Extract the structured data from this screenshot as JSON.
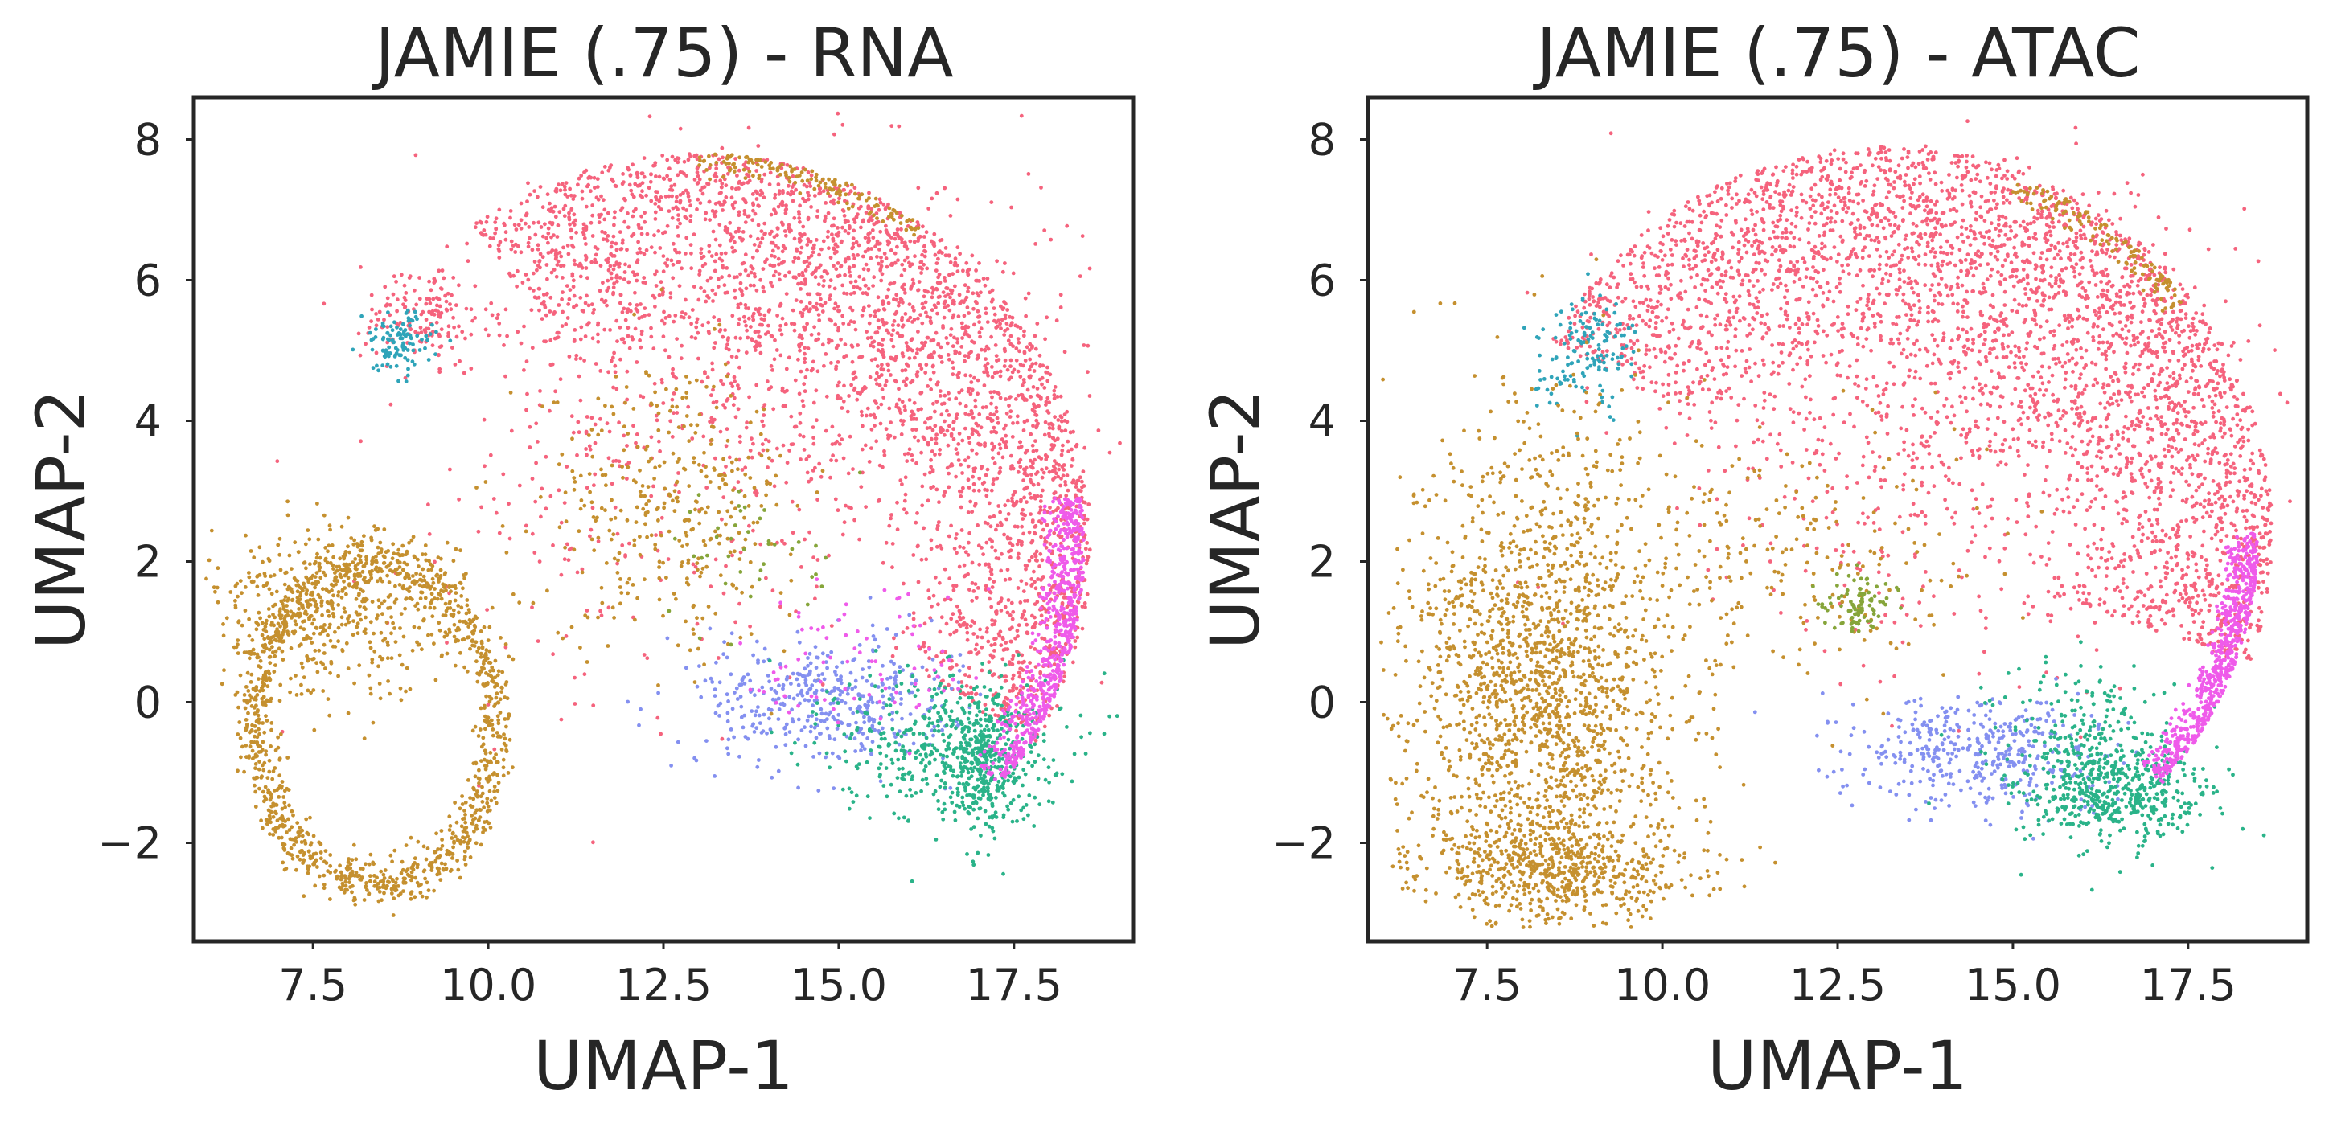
{
  "chart_data": [
    {
      "type": "scatter",
      "title": "JAMIE (.75) - RNA",
      "xlabel": "UMAP-1",
      "ylabel": "UMAP-2",
      "xlim": [
        5.8,
        19.2
      ],
      "ylim": [
        -3.4,
        8.6
      ],
      "xticks": [
        7.5,
        10.0,
        12.5,
        15.0,
        17.5
      ],
      "xtick_labels": [
        "7.5",
        "10.0",
        "12.5",
        "15.0",
        "17.5"
      ],
      "yticks": [
        -2,
        0,
        2,
        4,
        6,
        8
      ],
      "ytick_labels": [
        "−2",
        "0",
        "2",
        "4",
        "6",
        "8"
      ],
      "grid": false,
      "legend": "none",
      "clusters": [
        {
          "color": "#f5637d",
          "shape": "arc",
          "cx": 13.0,
          "cy": 2.2,
          "r_min": 2.8,
          "r_max": 5.6,
          "theta": [
            -30,
            125
          ],
          "n": 2600
        },
        {
          "color": "#f5637d",
          "shape": "blob",
          "cx": 14.6,
          "cy": 4.6,
          "sx": 2.0,
          "sy": 1.5,
          "n": 900
        },
        {
          "color": "#f5637d",
          "shape": "blob",
          "cx": 9.1,
          "cy": 5.5,
          "sx": 0.45,
          "sy": 0.35,
          "n": 160
        },
        {
          "color": "#f5637d",
          "shape": "blob",
          "cx": 11.0,
          "cy": 3.0,
          "sx": 1.3,
          "sy": 2.0,
          "n": 120
        },
        {
          "color": "#2fa4b9",
          "shape": "blob",
          "cx": 8.7,
          "cy": 5.1,
          "sx": 0.25,
          "sy": 0.22,
          "n": 110
        },
        {
          "color": "#c5902f",
          "shape": "ring",
          "cx": 8.4,
          "cy": -0.3,
          "rx": 1.7,
          "ry": 2.3,
          "width": 0.35,
          "n": 1200
        },
        {
          "color": "#c5902f",
          "shape": "blob",
          "cx": 7.7,
          "cy": 1.2,
          "sx": 0.9,
          "sy": 0.6,
          "n": 500
        },
        {
          "color": "#c5902f",
          "shape": "blob",
          "cx": 12.6,
          "cy": 2.8,
          "sx": 0.9,
          "sy": 1.0,
          "n": 350
        },
        {
          "color": "#c5902f",
          "shape": "arc",
          "cx": 13.0,
          "cy": 2.2,
          "r_min": 5.2,
          "r_max": 5.6,
          "theta": [
            55,
            90
          ],
          "n": 140
        },
        {
          "color": "#8490f0",
          "shape": "blob",
          "cx": 14.8,
          "cy": 0.0,
          "sx": 0.9,
          "sy": 0.45,
          "n": 420
        },
        {
          "color": "#2ab389",
          "shape": "blob",
          "cx": 16.6,
          "cy": -0.6,
          "sx": 0.8,
          "sy": 0.55,
          "n": 480
        },
        {
          "color": "#2ab389",
          "shape": "blob",
          "cx": 17.1,
          "cy": -0.9,
          "sx": 0.25,
          "sy": 0.45,
          "n": 260
        },
        {
          "color": "#ef5bea",
          "shape": "arc",
          "cx": 13.0,
          "cy": 2.2,
          "r_min": 4.9,
          "r_max": 5.5,
          "theta": [
            -38,
            8
          ],
          "n": 650
        },
        {
          "color": "#ef5bea",
          "shape": "blob",
          "cx": 15.5,
          "cy": 0.6,
          "sx": 0.9,
          "sy": 0.6,
          "n": 80
        },
        {
          "color": "#86a53a",
          "shape": "blob",
          "cx": 13.9,
          "cy": 2.2,
          "sx": 0.6,
          "sy": 0.5,
          "n": 40
        }
      ]
    },
    {
      "type": "scatter",
      "title": "JAMIE (.75) - ATAC",
      "xlabel": "UMAP-1",
      "ylabel": "UMAP-2",
      "xlim": [
        5.8,
        19.2
      ],
      "ylim": [
        -3.4,
        8.6
      ],
      "xticks": [
        7.5,
        10.0,
        12.5,
        15.0,
        17.5
      ],
      "xtick_labels": [
        "7.5",
        "10.0",
        "12.5",
        "15.0",
        "17.5"
      ],
      "yticks": [
        -2,
        0,
        2,
        4,
        6,
        8
      ],
      "ytick_labels": [
        "−2",
        "0",
        "2",
        "4",
        "6",
        "8"
      ],
      "grid": false,
      "legend": "none",
      "clusters": [
        {
          "color": "#f5637d",
          "shape": "arc",
          "cx": 13.2,
          "cy": 2.4,
          "r_min": 2.4,
          "r_max": 5.5,
          "theta": [
            -20,
            150
          ],
          "n": 3000
        },
        {
          "color": "#f5637d",
          "shape": "blob",
          "cx": 14.4,
          "cy": 4.2,
          "sx": 2.0,
          "sy": 1.6,
          "n": 1000
        },
        {
          "color": "#2fa4b9",
          "shape": "blob",
          "cx": 8.9,
          "cy": 5.0,
          "sx": 0.35,
          "sy": 0.4,
          "n": 140
        },
        {
          "color": "#c5902f",
          "shape": "blob",
          "cx": 8.3,
          "cy": 0.1,
          "sx": 0.95,
          "sy": 1.9,
          "n": 2000
        },
        {
          "color": "#c5902f",
          "shape": "blob",
          "cx": 8.6,
          "cy": -2.4,
          "sx": 1.0,
          "sy": 0.3,
          "n": 450
        },
        {
          "color": "#c5902f",
          "shape": "blob",
          "cx": 11.8,
          "cy": 2.0,
          "sx": 1.3,
          "sy": 0.9,
          "n": 220
        },
        {
          "color": "#c5902f",
          "shape": "arc",
          "cx": 13.2,
          "cy": 2.4,
          "r_min": 5.0,
          "r_max": 5.4,
          "theta": [
            38,
            70
          ],
          "n": 130
        },
        {
          "color": "#86a53a",
          "shape": "blob",
          "cx": 12.8,
          "cy": 1.4,
          "sx": 0.25,
          "sy": 0.2,
          "n": 90
        },
        {
          "color": "#8490f0",
          "shape": "blob",
          "cx": 14.6,
          "cy": -0.7,
          "sx": 0.9,
          "sy": 0.4,
          "n": 420
        },
        {
          "color": "#2ab389",
          "shape": "blob",
          "cx": 16.4,
          "cy": -1.3,
          "sx": 0.7,
          "sy": 0.4,
          "n": 520
        },
        {
          "color": "#2ab389",
          "shape": "blob",
          "cx": 16.0,
          "cy": -0.4,
          "sx": 0.6,
          "sy": 0.5,
          "n": 160
        },
        {
          "color": "#ef5bea",
          "shape": "arc",
          "cx": 13.2,
          "cy": 2.4,
          "r_min": 4.8,
          "r_max": 5.3,
          "theta": [
            -42,
            0
          ],
          "n": 650
        }
      ]
    }
  ]
}
